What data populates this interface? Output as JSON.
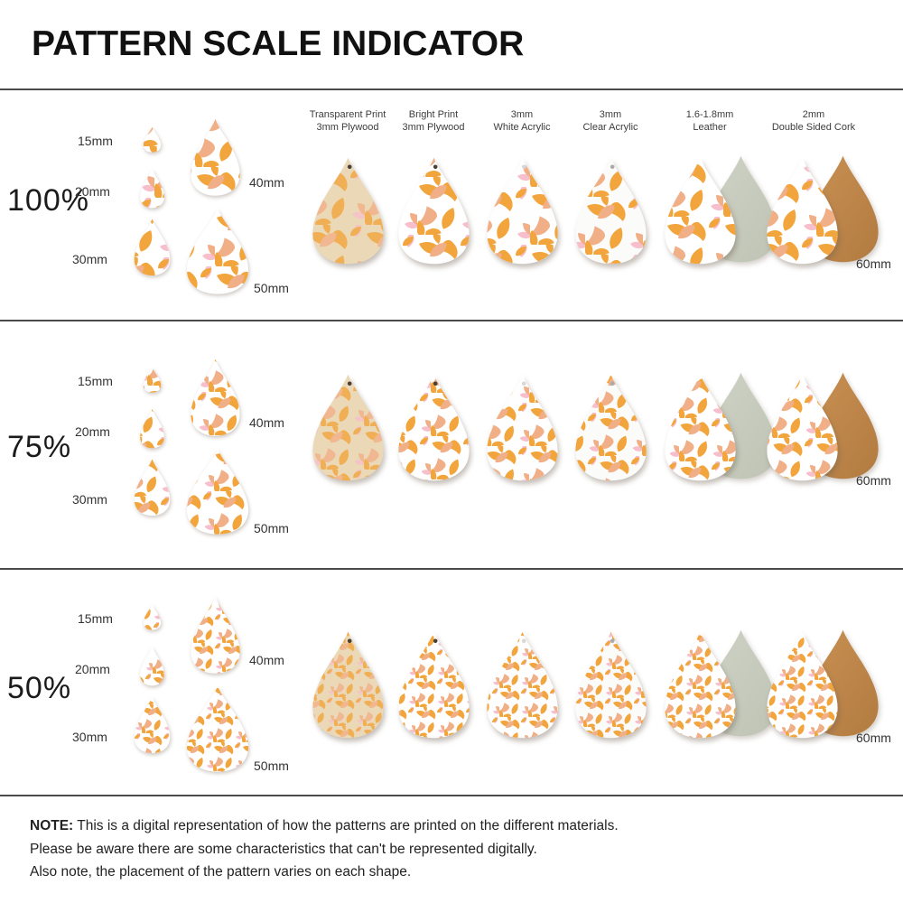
{
  "title": "PATTERN SCALE INDICATOR",
  "columns": [
    {
      "id": "plywood_transparent",
      "label": [
        "Transparent Print",
        "3mm Plywood"
      ]
    },
    {
      "id": "plywood_bright",
      "label": [
        "Bright Print",
        "3mm Plywood"
      ]
    },
    {
      "id": "acrylic_white",
      "label": [
        "3mm",
        "White Acrylic"
      ]
    },
    {
      "id": "acrylic_clear",
      "label": [
        "3mm",
        "Clear Acrylic"
      ]
    },
    {
      "id": "leather",
      "label": [
        "1.6-1.8mm",
        "Leather"
      ]
    },
    {
      "id": "cork",
      "label": [
        "2mm",
        "Double Sided Cork"
      ]
    }
  ],
  "rows": [
    {
      "scale_label": "100%",
      "pattern_scale": 1,
      "cluster_sizes": [
        "15mm",
        "20mm",
        "30mm",
        "40mm",
        "50mm"
      ],
      "main_size_label": "60mm"
    },
    {
      "scale_label": "75%",
      "pattern_scale": 0.75,
      "cluster_sizes": [
        "15mm",
        "20mm",
        "30mm",
        "40mm",
        "50mm"
      ],
      "main_size_label": "60mm"
    },
    {
      "scale_label": "50%",
      "pattern_scale": 0.5,
      "cluster_sizes": [
        "15mm",
        "20mm",
        "30mm",
        "40mm",
        "50mm"
      ],
      "main_size_label": "60mm"
    }
  ],
  "note": {
    "label": "NOTE:",
    "line1": "This is a digital representation of how the patterns are printed on the different materials.",
    "line2": "Please be aware there are some characteristics that can't be represented digitally.",
    "line3": "Also note, the placement of the pattern varies on each shape."
  },
  "pattern_colors": {
    "orange": "#F2A53C",
    "peach": "#F1AF88",
    "pink": "#F6BFCB"
  },
  "materials": {
    "plywood_transparent": {
      "base": "#EAD8B6",
      "pattern_opacity": 0.8,
      "hole": "#4A4036"
    },
    "plywood_bright": {
      "base": "#FFFFFF",
      "pattern_opacity": 1,
      "hole": "#4A4036"
    },
    "acrylic_white": {
      "base": "#FEFEFE",
      "pattern_opacity": 1,
      "hole": "#D8D8D8"
    },
    "acrylic_clear": {
      "base": "#FBFBFA",
      "pattern_opacity": 1,
      "hole": "#ABABAB"
    },
    "leather": {
      "base": "#FFFFFF",
      "pattern_opacity": 1,
      "back": [
        "#CFD3C6",
        "#BEC3B4"
      ]
    },
    "cork": {
      "base": "#FFFFFF",
      "pattern_opacity": 1,
      "back": [
        "#CA9154",
        "#B17A3F"
      ]
    }
  },
  "divider_color": "#4A4A4A"
}
